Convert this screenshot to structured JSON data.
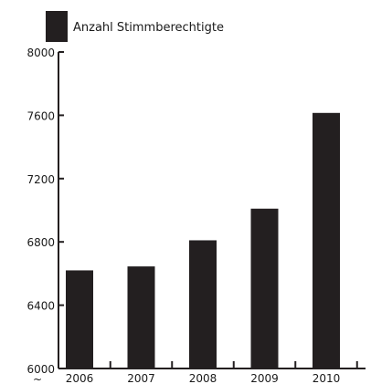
{
  "chart_data": {
    "type": "bar",
    "categories": [
      "2006",
      "2007",
      "2008",
      "2009",
      "2010"
    ],
    "series": [
      {
        "name": "Anzahl Stimmberechtigte",
        "values": [
          6620,
          6645,
          6810,
          7010,
          7615
        ],
        "color": "#231f20"
      }
    ],
    "ylim": [
      6000,
      8000
    ],
    "yticks": [
      6000,
      6400,
      6800,
      7200,
      7600,
      8000
    ],
    "title": "",
    "xlabel": "",
    "ylabel": "",
    "grid": false,
    "legend_position": "top-left",
    "axis_break_symbol": "~"
  }
}
